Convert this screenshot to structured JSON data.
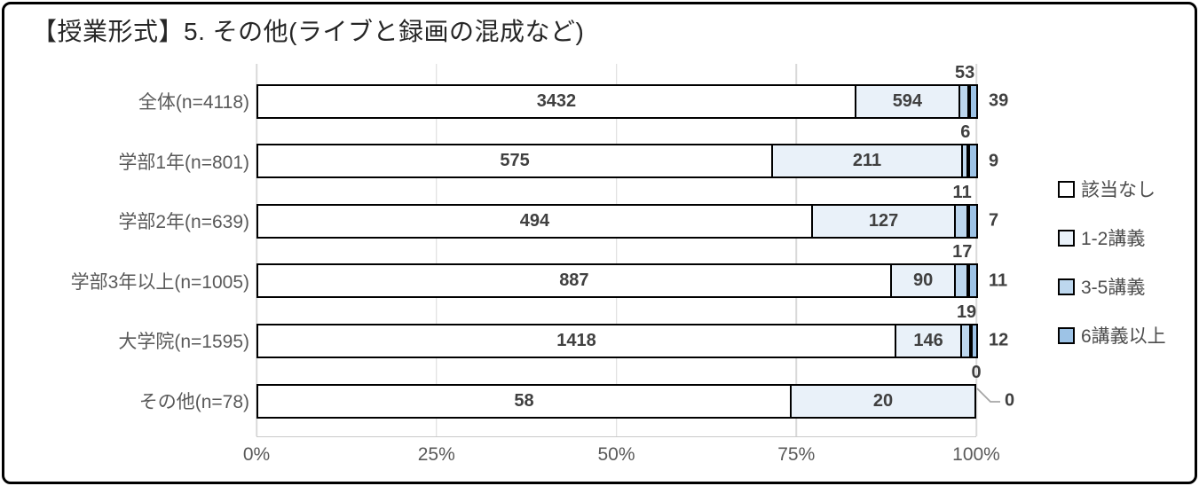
{
  "chart_data": {
    "type": "bar",
    "stacked": true,
    "stacked_mode": "percent",
    "orientation": "horizontal",
    "title": "【授業形式】5. その他(ライブと録画の混成など)",
    "categories": [
      "全体(n=4118)",
      "学部1年(n=801)",
      "学部2年(n=639)",
      "学部3年以上(n=1005)",
      "大学院(n=1595)",
      "その他(n=78)"
    ],
    "series": [
      {
        "name": "該当なし",
        "color": "#FFFFFF",
        "values": [
          3432,
          575,
          494,
          887,
          1418,
          58
        ]
      },
      {
        "name": "1-2講義",
        "color": "#E9F1F9",
        "values": [
          594,
          211,
          127,
          90,
          146,
          20
        ]
      },
      {
        "name": "3-5講義",
        "color": "#BDD7EE",
        "values": [
          53,
          6,
          11,
          17,
          19,
          0
        ]
      },
      {
        "name": "6講義以上",
        "color": "#9DC3E6",
        "values": [
          39,
          9,
          7,
          11,
          12,
          0
        ]
      }
    ],
    "x_ticks": [
      "0%",
      "25%",
      "50%",
      "75%",
      "100%"
    ],
    "xlim": [
      0,
      100
    ],
    "xlabel": "",
    "ylabel": "",
    "gridlines": true,
    "legend_position": "right",
    "label_notes": "series 1-2 labeled inside segments; series 3 labeled above bar end; series 4 labeled right of bar; zero values of last row labeled with leader line"
  }
}
